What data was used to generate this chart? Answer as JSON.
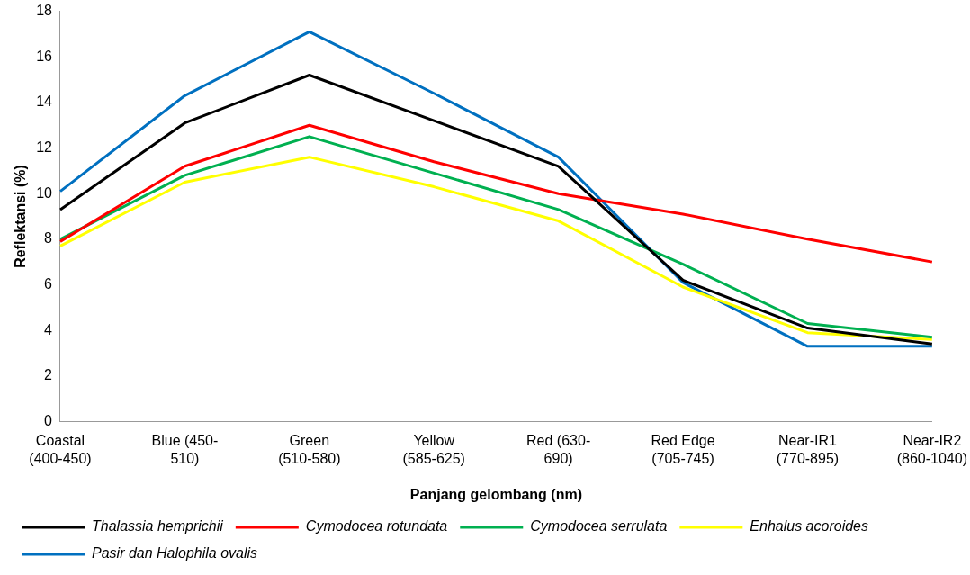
{
  "chart_data": {
    "type": "line",
    "xlabel": "Panjang gelombang (nm)",
    "ylabel": "Reflektansi (%)",
    "categories": [
      "Coastal (400-450)",
      "Blue (450-510)",
      "Green (510-580)",
      "Yellow (585-625)",
      "Red (630-690)",
      "Red Edge (705-745)",
      "Near-IR1 (770-895)",
      "Near-IR2 (860-1040)"
    ],
    "series": [
      {
        "name": "Thalassia hemprichii",
        "color": "#000000",
        "values": [
          9.3,
          13.1,
          15.2,
          13.2,
          11.2,
          6.2,
          4.1,
          3.4
        ]
      },
      {
        "name": "Cymodocea rotundata",
        "color": "#ff0000",
        "values": [
          7.9,
          11.2,
          13.0,
          11.4,
          10.0,
          9.1,
          8.0,
          7.0
        ]
      },
      {
        "name": "Cymodocea serrulata",
        "color": "#00b050",
        "values": [
          8.0,
          10.8,
          12.5,
          10.9,
          9.3,
          6.9,
          4.3,
          3.7
        ]
      },
      {
        "name": "Enhalus acoroides",
        "color": "#ffff00",
        "values": [
          7.7,
          10.5,
          11.6,
          10.3,
          8.8,
          5.9,
          3.9,
          3.6
        ]
      },
      {
        "name": "Pasir dan Halophila ovalis",
        "color": "#0070c0",
        "values": [
          10.1,
          14.3,
          17.1,
          14.4,
          11.6,
          6.1,
          3.3,
          3.3
        ]
      }
    ],
    "ylim": [
      0,
      18
    ],
    "yticks": [
      0,
      2,
      4,
      6,
      8,
      10,
      12,
      14,
      16,
      18
    ],
    "grid": false,
    "legend": "bottom",
    "marker": "none",
    "line_style": "solid"
  }
}
